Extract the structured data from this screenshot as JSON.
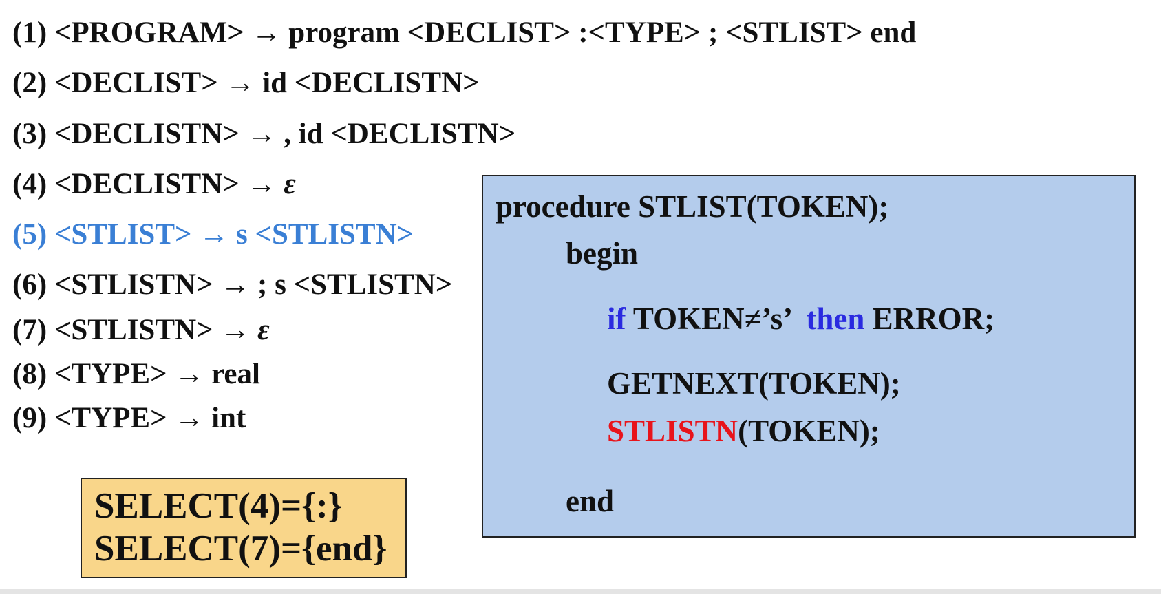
{
  "rules": [
    {
      "num": "(1)",
      "text": "<PROGRAM> → program <DECLIST> :<TYPE> ; <STLIST> end"
    },
    {
      "num": "(2)",
      "text": "<DECLIST> → id <DECLISTN>"
    },
    {
      "num": "(3)",
      "text": "<DECLISTN> → , id <DECLISTN>"
    },
    {
      "num": "(4)",
      "text": "<DECLISTN> → ",
      "eps": "ε"
    },
    {
      "num": "(5)",
      "text": "<STLIST> → s <STLISTN>",
      "highlight_color": "#3a7fd5"
    },
    {
      "num": "(6)",
      "text": "<STLISTN> → ; s <STLISTN>"
    },
    {
      "num": "(7)",
      "text": "<STLISTN> → ",
      "eps": "ε"
    },
    {
      "num": "(8)",
      "text": "<TYPE> → real"
    },
    {
      "num": "(9)",
      "text": "<TYPE> → int"
    }
  ],
  "select_box": {
    "line1": "SELECT(4)={:}",
    "line2": "SELECT(7)={end}",
    "bg_color": "#f9d68a"
  },
  "procedure": {
    "header": "procedure STLIST(TOKEN);",
    "begin": "begin",
    "if_kw": "if",
    "if_cond": " TOKEN≠’s’ ",
    "then_kw": "then",
    "then_action": " ERROR;",
    "getnext": "GETNEXT(TOKEN);",
    "call_name": "STLISTN",
    "call_args": "(TOKEN);",
    "end": "end",
    "bg_color": "#b4ccec",
    "keyword_color": "#2a2ae0",
    "call_color": "#e8141b"
  }
}
